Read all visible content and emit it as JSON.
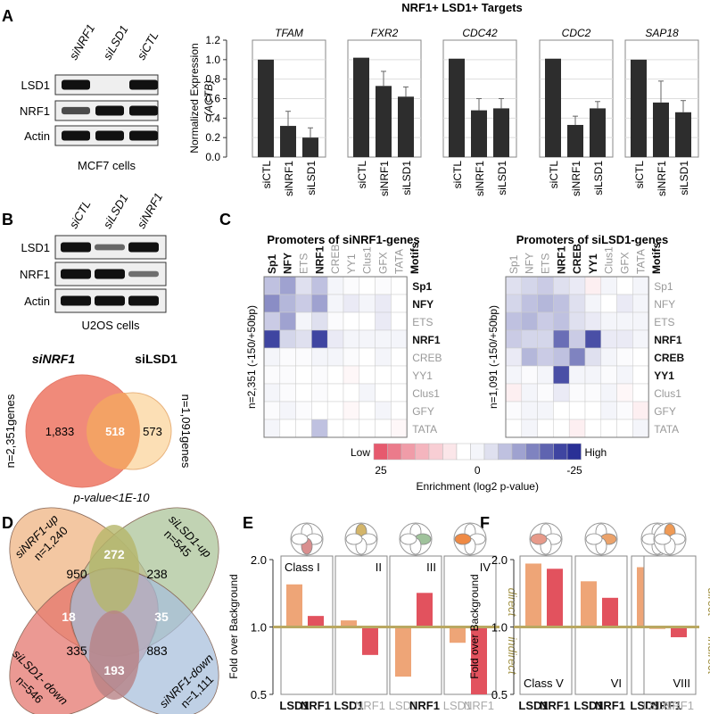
{
  "panels": {
    "A": "A",
    "B": "B",
    "C": "C",
    "D": "D",
    "E": "E",
    "F": "F"
  },
  "panelA": {
    "blot": {
      "lanes": [
        "siNRF1",
        "siLSD1",
        "siCTL"
      ],
      "rows": [
        "LSD1",
        "NRF1",
        "Actin"
      ],
      "caption": "MCF7 cells",
      "band_intensity": [
        [
          1,
          0,
          1
        ],
        [
          0.6,
          1,
          1
        ],
        [
          1,
          1,
          1
        ]
      ]
    }
  },
  "panelB": {
    "blot": {
      "lanes": [
        "siCTL",
        "siLSD1",
        "siNRF1"
      ],
      "rows": [
        "LSD1",
        "NRF1",
        "Actin"
      ],
      "caption": "U2OS cells",
      "band_intensity": [
        [
          1,
          0.4,
          1
        ],
        [
          1,
          1,
          0.35
        ],
        [
          1,
          1,
          1
        ]
      ]
    },
    "venn": {
      "left_title": "siNRF1",
      "right_title": "siLSD1",
      "left_only": "1,833",
      "overlap": "518",
      "right_only": "573",
      "left_n": "n=2,351genes",
      "right_n": "n=1,091genes",
      "pvalue": "p-value<1E-10",
      "colors": {
        "left": "#f08a7a",
        "right": "#fcd9a8",
        "overlap": "#f3a265"
      }
    }
  },
  "panelC": {
    "left_title": "Promoters of siNRF1-genes",
    "right_title": "Promoters of siLSD1-genes",
    "col_labels": [
      "Sp1",
      "NFY",
      "ETS",
      "NRF1",
      "CREB",
      "YY1",
      "Clus1",
      "GFX",
      "TATA"
    ],
    "left_bold_cols": [
      true,
      true,
      false,
      true,
      false,
      false,
      false,
      false,
      false
    ],
    "right_bold_cols": [
      false,
      false,
      false,
      true,
      true,
      true,
      false,
      false,
      false
    ],
    "motifs_label": "Motifs",
    "row_labels": [
      "Sp1",
      "NFY",
      "ETS",
      "NRF1",
      "CREB",
      "YY1",
      "Clus1",
      "GFY",
      "TATA"
    ],
    "left_bold_rows": [
      true,
      true,
      false,
      true,
      false,
      false,
      false,
      false,
      false
    ],
    "right_bold_rows": [
      false,
      false,
      false,
      true,
      true,
      true,
      false,
      false,
      false
    ],
    "left_n": "n=2,351 (-150/+50bp)",
    "right_n": "n=1,091 (-150/+50bp)",
    "scale": {
      "low": "Low",
      "high": "High",
      "ticks": [
        "25",
        "0",
        "-25"
      ],
      "caption": "Enrichment  (log2 p-value)"
    }
  },
  "panelD": {
    "labels": {
      "nrf1_up": "siNRF1-up",
      "nrf1_up_n": "n=1,240",
      "lsd1_up": "siLSD1-up",
      "lsd1_up_n": "n=545",
      "lsd1_down": "siLSD1- down",
      "lsd1_down_n": "n=546",
      "nrf1_down": "siNRF1-down",
      "nrf1_down_n": "n=1,111"
    },
    "counts": {
      "a": "950",
      "b": "272",
      "c": "238",
      "d": "18",
      "e": "35",
      "f": "335",
      "g": "193",
      "h": "883"
    },
    "colors": {
      "orange": "#eeb27e",
      "olive": "#b5b76a",
      "green": "#a9c296",
      "red": "#e3716a",
      "blue": "#a6bedb",
      "purple": "#b88286"
    }
  },
  "panelE": {
    "ylabel": "Fold over Background",
    "ytick_labels": [
      "2.0",
      "1.0",
      "0.5"
    ],
    "direct": "direct",
    "indirect": "indirect",
    "classes": [
      "Class I",
      "II",
      "III",
      "IV"
    ],
    "bar_labels": [
      [
        "LSD1",
        "NRF1"
      ],
      [
        "LSD1",
        "NRF1"
      ],
      [
        "LSD1",
        "NRF1"
      ],
      [
        "LSD1",
        "NRF1"
      ]
    ],
    "label_bold": [
      [
        true,
        true
      ],
      [
        true,
        false
      ],
      [
        false,
        true
      ],
      [
        false,
        false
      ]
    ],
    "colors": {
      "lsd1": "#eea577",
      "nrf1": "#e2525e",
      "line": "#b9a861"
    }
  },
  "panelF": {
    "ylabel": "Fold over Background",
    "ytick_labels": [
      "2.0",
      "1.0",
      "0.5"
    ],
    "direct": "direct",
    "indirect": "indirect",
    "classes": [
      "Class V",
      "VI",
      "VII",
      "VIII"
    ],
    "bar_labels": [
      [
        "LSD1",
        "NRF1"
      ],
      [
        "LSD1",
        "NRF1"
      ],
      [
        "LSD1",
        "NRF1"
      ],
      [
        "LSD1",
        "NRF1"
      ]
    ],
    "label_bold": [
      [
        true,
        true
      ],
      [
        true,
        true
      ],
      [
        true,
        true
      ],
      [
        false,
        false
      ]
    ]
  },
  "chart_data": [
    {
      "type": "bar",
      "title": "NRF1+ LSD1+ Targets",
      "ylabel": "Normalized Expression (ACTB)",
      "ylim": [
        0,
        1.2
      ],
      "yticks": [
        "0.0",
        "0.2",
        "0.4",
        "0.6",
        "0.8",
        "1.0",
        "1.2"
      ],
      "categories": [
        "siCTL",
        "siNRF1",
        "siLSD1"
      ],
      "series": [
        {
          "name": "TFAM",
          "values": [
            1.0,
            0.32,
            0.2
          ],
          "errors": [
            0,
            0.15,
            0.1
          ]
        },
        {
          "name": "FXR2",
          "values": [
            1.02,
            0.73,
            0.62
          ],
          "errors": [
            0,
            0.15,
            0.1
          ]
        },
        {
          "name": "CDC42",
          "values": [
            1.01,
            0.48,
            0.5
          ],
          "errors": [
            0,
            0.12,
            0.1
          ]
        },
        {
          "name": "CDC2",
          "values": [
            1.01,
            0.33,
            0.5
          ],
          "errors": [
            0,
            0.09,
            0.07
          ]
        },
        {
          "name": "SAP18",
          "values": [
            1.0,
            0.56,
            0.46
          ],
          "errors": [
            0,
            0.22,
            0.12
          ]
        }
      ]
    },
    {
      "type": "heatmap",
      "title": "Promoters of siNRF1-genes",
      "values": [
        [
          0.3,
          0.45,
          0.15,
          0.3,
          0.05,
          0.02,
          0,
          0.02,
          0
        ],
        [
          0.55,
          0.35,
          0.25,
          0.45,
          0.05,
          0.1,
          0.05,
          0.1,
          0
        ],
        [
          0.25,
          0.45,
          0.05,
          0.15,
          0.02,
          0,
          0,
          0.1,
          0
        ],
        [
          0.9,
          0.2,
          0.15,
          0.9,
          0.1,
          0.05,
          0.05,
          0.05,
          0.05
        ],
        [
          0.05,
          0.02,
          0.02,
          0.05,
          0.05,
          0.02,
          0,
          0.05,
          0
        ],
        [
          0.02,
          0.02,
          0,
          0.02,
          0,
          -0.05,
          0,
          0,
          0
        ],
        [
          0.05,
          0.02,
          0,
          0.02,
          0,
          0,
          0.05,
          0,
          0
        ],
        [
          0.02,
          0.05,
          0.02,
          0,
          0,
          -0.05,
          0,
          0.05,
          0
        ],
        [
          0.05,
          0,
          0,
          0.3,
          0,
          0,
          0,
          0,
          -0.05
        ]
      ]
    },
    {
      "type": "heatmap",
      "title": "Promoters of siLSD1-genes",
      "values": [
        [
          0.15,
          0.2,
          0.25,
          0.15,
          0.1,
          -0.1,
          0.05,
          0,
          0.05
        ],
        [
          0.2,
          0.3,
          0.35,
          0.3,
          0.15,
          0.05,
          0,
          0.1,
          0.05
        ],
        [
          0.3,
          0.35,
          0.25,
          0.3,
          0.15,
          0.1,
          0.05,
          0.05,
          0.05
        ],
        [
          0.25,
          0.2,
          0.2,
          0.7,
          0.25,
          0.85,
          0.1,
          0.1,
          0.05
        ],
        [
          0.1,
          0.35,
          0.25,
          0.3,
          0.6,
          0.15,
          0.05,
          0.02,
          0
        ],
        [
          0.05,
          0.02,
          0.05,
          0.85,
          0.05,
          0.05,
          0.02,
          0.05,
          0
        ],
        [
          -0.1,
          0.05,
          0.02,
          0.1,
          0.02,
          0.02,
          0.05,
          -0.05,
          0
        ],
        [
          0.02,
          0.05,
          0.05,
          0,
          0,
          0,
          0.05,
          0.02,
          -0.1
        ],
        [
          0,
          0.05,
          0,
          0,
          -0.1,
          0,
          0,
          0,
          0.05
        ]
      ]
    },
    {
      "type": "bar",
      "title": "Panel E",
      "ylabel": "Fold over Background",
      "ylim": [
        0.5,
        2.0
      ],
      "categories": [
        "Class I",
        "II",
        "III",
        "IV"
      ],
      "series": [
        {
          "name": "LSD1",
          "values": [
            1.55,
            1.07,
            0.6,
            0.85
          ]
        },
        {
          "name": "NRF1",
          "values": [
            1.12,
            0.75,
            1.42,
            0.5
          ]
        }
      ]
    },
    {
      "type": "bar",
      "title": "Panel F",
      "ylabel": "Fold over Background",
      "ylim": [
        0.5,
        2.0
      ],
      "categories": [
        "Class V",
        "VI",
        "VII",
        "VIII"
      ],
      "series": [
        {
          "name": "LSD1",
          "values": [
            1.92,
            1.6,
            1.85,
            0.98
          ]
        },
        {
          "name": "NRF1",
          "values": [
            1.82,
            1.35,
            1.83,
            0.9
          ]
        }
      ]
    }
  ]
}
